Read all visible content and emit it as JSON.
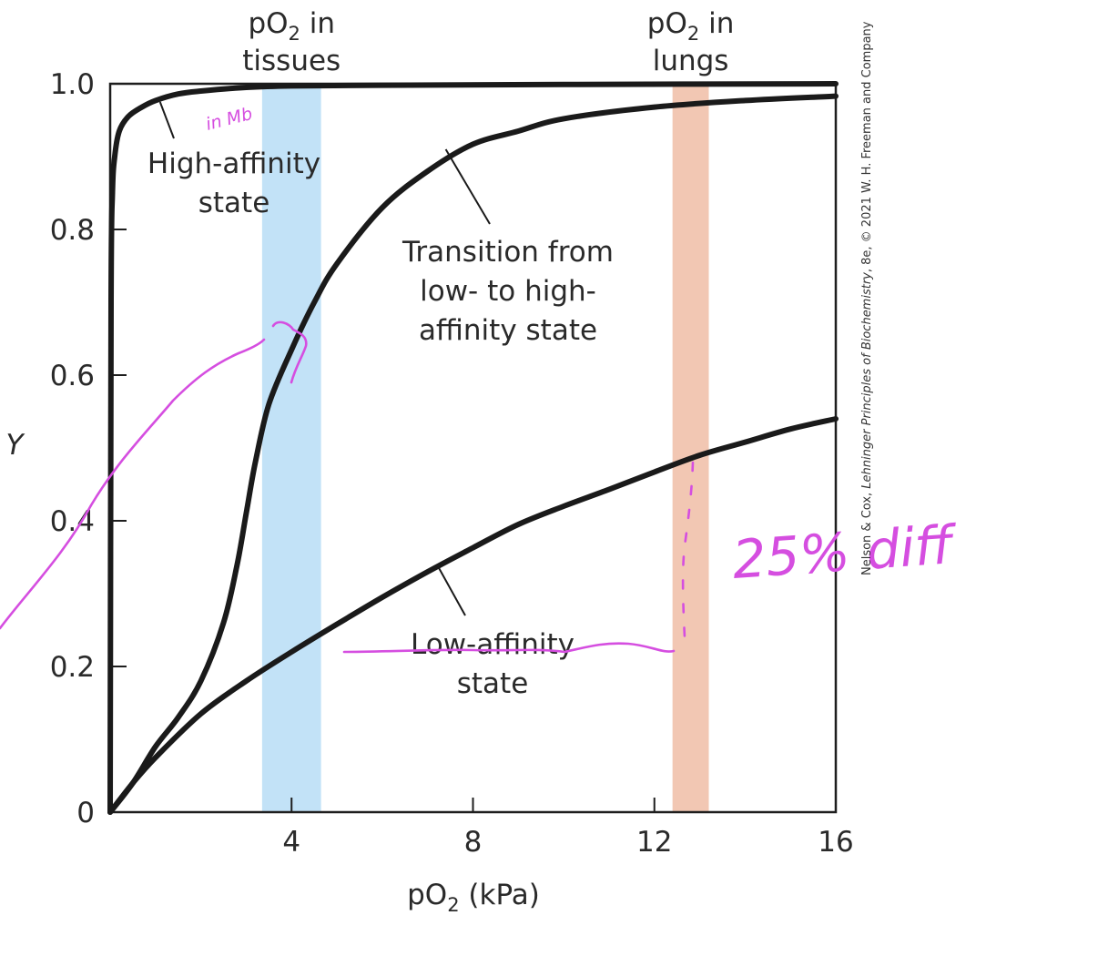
{
  "chart_data": {
    "type": "line",
    "xlabel": "pO",
    "xlabel_sub": "2",
    "xlabel_unit": " (kPa)",
    "ylabel": "Y",
    "xlim": [
      0,
      16
    ],
    "ylim": [
      0,
      1.0
    ],
    "x_ticks": [
      {
        "value": 4,
        "label": "4"
      },
      {
        "value": 8,
        "label": "8"
      },
      {
        "value": 12,
        "label": "12"
      },
      {
        "value": 16,
        "label": "16"
      }
    ],
    "y_ticks": [
      {
        "value": 0,
        "label": "0"
      },
      {
        "value": 0.2,
        "label": "0.2"
      },
      {
        "value": 0.4,
        "label": "0.4"
      },
      {
        "value": 0.6,
        "label": "0.6"
      },
      {
        "value": 0.8,
        "label": "0.8"
      },
      {
        "value": 1.0,
        "label": "1.0"
      }
    ],
    "bands": [
      {
        "name": "tissues",
        "x_range": [
          3.35,
          4.65
        ],
        "color": "#c2e2f7",
        "label_top": "pO",
        "label_sub": "2",
        "label_after": " in",
        "label_bottom": "tissues"
      },
      {
        "name": "lungs",
        "x_range": [
          12.4,
          13.2
        ],
        "color": "#f2c7b3",
        "label_top": "pO",
        "label_sub": "2",
        "label_after": " in",
        "label_bottom": "lungs"
      }
    ],
    "series": [
      {
        "key": "high",
        "points": [
          [
            0,
            0
          ],
          [
            0.02,
            0.7
          ],
          [
            0.05,
            0.85
          ],
          [
            0.1,
            0.9
          ],
          [
            0.2,
            0.935
          ],
          [
            0.4,
            0.955
          ],
          [
            0.7,
            0.968
          ],
          [
            1,
            0.977
          ],
          [
            1.5,
            0.986
          ],
          [
            2,
            0.99
          ],
          [
            3,
            0.995
          ],
          [
            4,
            0.997
          ],
          [
            6,
            0.998
          ],
          [
            10,
            0.999
          ],
          [
            16,
            1.0
          ]
        ]
      },
      {
        "key": "transition",
        "points": [
          [
            0,
            0
          ],
          [
            0.5,
            0.04
          ],
          [
            1,
            0.09
          ],
          [
            1.5,
            0.13
          ],
          [
            2,
            0.18
          ],
          [
            2.5,
            0.26
          ],
          [
            2.8,
            0.34
          ],
          [
            3,
            0.41
          ],
          [
            3.2,
            0.48
          ],
          [
            3.5,
            0.56
          ],
          [
            4,
            0.635
          ],
          [
            4.5,
            0.7
          ],
          [
            5,
            0.753
          ],
          [
            6,
            0.83
          ],
          [
            7,
            0.88
          ],
          [
            8,
            0.917
          ],
          [
            9,
            0.935
          ],
          [
            10,
            0.952
          ],
          [
            12,
            0.968
          ],
          [
            14,
            0.977
          ],
          [
            16,
            0.983
          ]
        ]
      },
      {
        "key": "low",
        "points": [
          [
            0,
            0
          ],
          [
            0.5,
            0.04
          ],
          [
            1,
            0.075
          ],
          [
            2,
            0.135
          ],
          [
            3,
            0.18
          ],
          [
            4,
            0.22
          ],
          [
            5,
            0.258
          ],
          [
            6,
            0.295
          ],
          [
            7,
            0.33
          ],
          [
            8,
            0.363
          ],
          [
            9,
            0.395
          ],
          [
            10,
            0.42
          ],
          [
            11,
            0.443
          ],
          [
            12,
            0.467
          ],
          [
            13,
            0.49
          ],
          [
            14,
            0.508
          ],
          [
            15,
            0.526
          ],
          [
            16,
            0.54
          ]
        ]
      }
    ],
    "annotations": [
      {
        "key": "high",
        "lines": [
          "High-affinity",
          "state"
        ],
        "leader_from": [
          1.1,
          0.975
        ]
      },
      {
        "key": "transition",
        "lines": [
          "Transition from",
          "low- to high-",
          "affinity state"
        ],
        "leader_from": [
          7.4,
          0.91
        ]
      },
      {
        "key": "low",
        "lines": [
          "Low-affinity",
          "state"
        ],
        "leader_from": [
          7.25,
          0.335
        ]
      }
    ]
  },
  "handwriting": {
    "color": "#d54ee0",
    "in_mb": "in Mb",
    "pct_diff": "25% diff"
  },
  "credit": {
    "prefix": "Nelson & Cox, ",
    "title": "Lehninger Principles of Biochemistry",
    "suffix": ", 8e, © 2021 W. H. Freeman and Company"
  }
}
